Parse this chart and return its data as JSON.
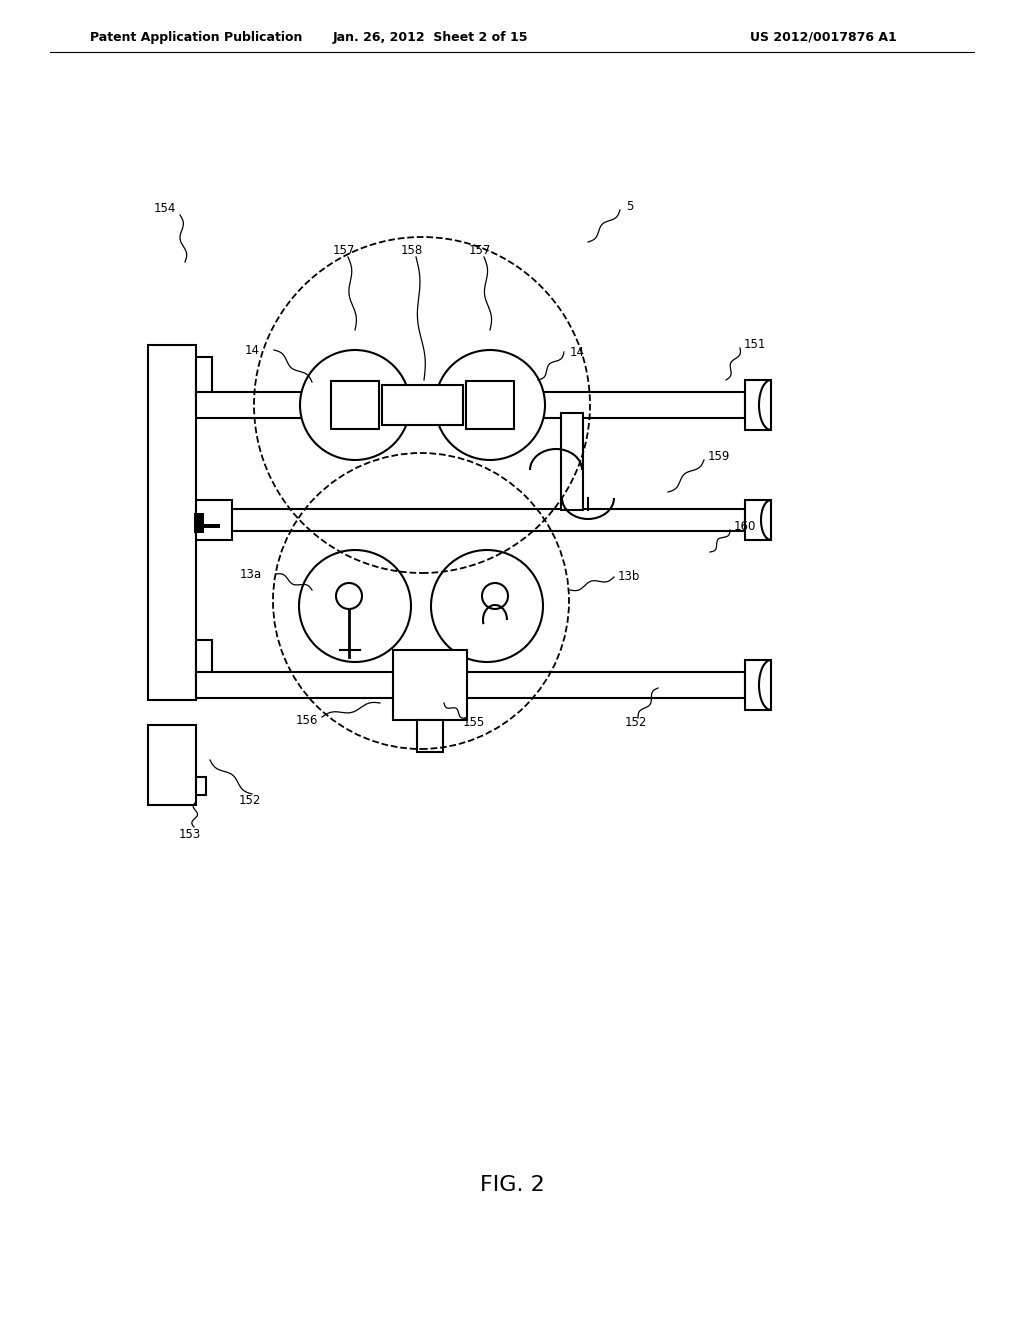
{
  "bg_color": "#ffffff",
  "header_left": "Patent Application Publication",
  "header_mid": "Jan. 26, 2012  Sheet 2 of 15",
  "header_right": "US 2012/0017876 A1",
  "figure_label": "FIG. 2"
}
